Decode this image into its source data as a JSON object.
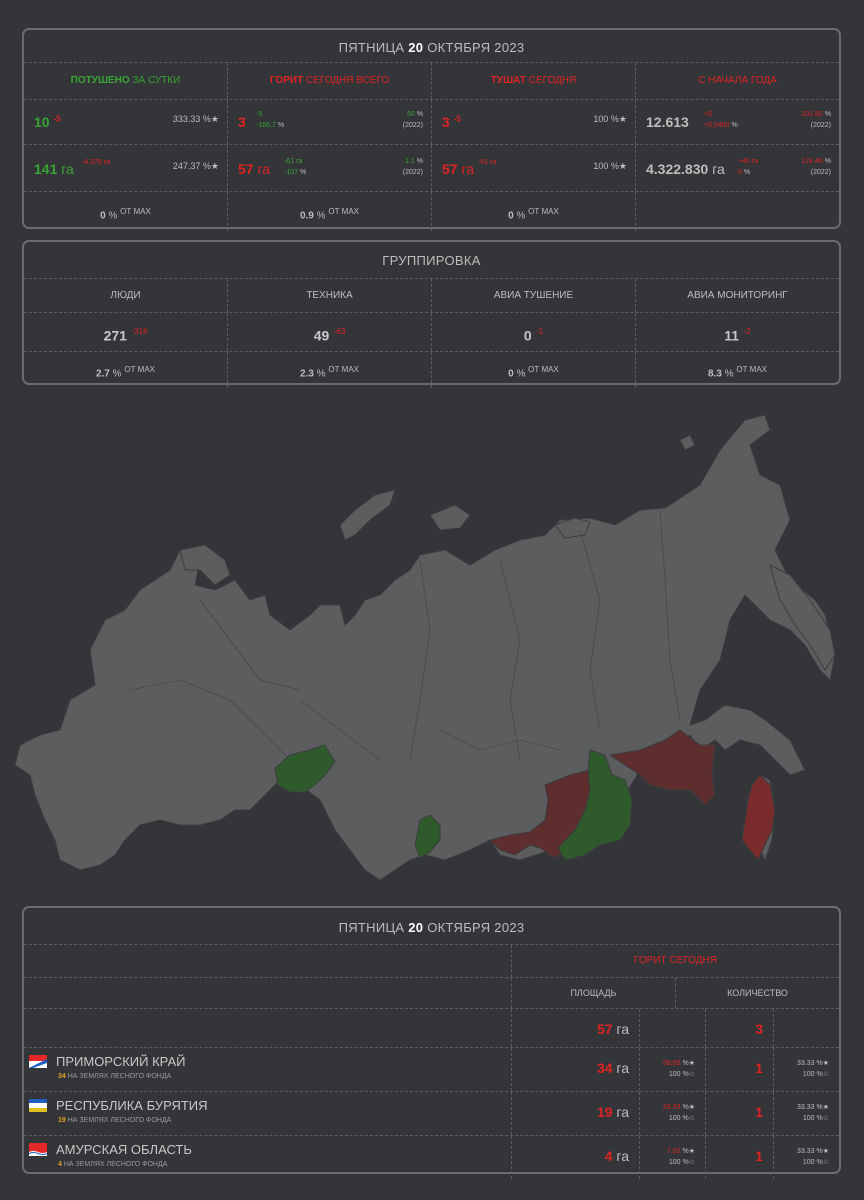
{
  "date": {
    "weekday": "ПЯТНИЦА",
    "day": "20",
    "month_year": "ОКТЯБРЯ 2023"
  },
  "summary": {
    "extinguished": {
      "hdr_a": "ПОТУШЕНО",
      "hdr_b": " ЗА СУТКИ",
      "count": "10",
      "count_delta": "-5",
      "count_pct": "333.33",
      "area": "141",
      "area_unit": "га",
      "area_delta": "-4.379 га",
      "area_pct": "247.37",
      "max_pct": "0"
    },
    "burning": {
      "hdr_a": "ГОРИТ",
      "hdr_b": " СЕГОДНЯ ВСЕГО",
      "count": "3",
      "count_delta": "-5",
      "count_delta_pct": "-166,7",
      "count_pct": "50",
      "count_year": "(2022)",
      "area": "57",
      "area_unit": "га",
      "area_delta": "-61 га",
      "area_delta_pct": "-107",
      "area_pct": "1.1",
      "area_year": "(2022)",
      "max_pct": "0.9"
    },
    "fighting": {
      "hdr_a": "ТУШАТ",
      "hdr_b": " СЕГОДНЯ",
      "count": "3",
      "count_delta": "-5",
      "count_pct": "100",
      "area": "57",
      "area_unit": "га",
      "area_delta": "-61 га",
      "area_pct": "100",
      "max_pct": "0"
    },
    "ytd": {
      "hdr": "С НАЧАЛА ГОДА",
      "count": "12.613",
      "count_delta": "+5",
      "count_delta_pct": "+0,0400",
      "count_pct": "101.82",
      "count_year": "(2022)",
      "area": "4.322.830",
      "area_unit": "га",
      "area_delta": "+40 га",
      "area_delta_pct": "0",
      "area_pct": "124.46",
      "area_year": "(2022)"
    },
    "pct_sign": "%",
    "star": "★",
    "of_max": "ОТ MAX"
  },
  "group": {
    "title": "ГРУППИРОВКА",
    "cols": [
      {
        "label": "ЛЮДИ",
        "value": "271",
        "delta": "-316",
        "max_pct": "2.7"
      },
      {
        "label": "ТЕХНИКА",
        "value": "49",
        "delta": "-63",
        "max_pct": "2.3"
      },
      {
        "label": "АВИА ТУШЕНИЕ",
        "value": "0",
        "delta": "-1",
        "max_pct": "0"
      },
      {
        "label": "АВИА МОНИТОРИНГ",
        "value": "11",
        "delta": "-2",
        "max_pct": "8.3"
      }
    ]
  },
  "table": {
    "burning_today": "ГОРИТ СЕГОДНЯ",
    "area_hdr": "ПЛОЩАДЬ",
    "count_hdr": "КОЛИЧЕСТВО",
    "total_area": "57",
    "total_count": "3",
    "unit": "га",
    "forest_note": "НА ЗЕМЛЯХ ЛЕСНОГО ФОНДА",
    "rows": [
      {
        "name": "ПРИМОРСКИЙ КРАЙ",
        "forest": "34",
        "area": "34",
        "area_pct": "59.65",
        "area_pct2": "100",
        "count": "1",
        "count_pct": "33.33",
        "count_pct2": "100"
      },
      {
        "name": "РЕСПУБЛИКА БУРЯТИЯ",
        "forest": "19",
        "area": "19",
        "area_pct": "33.33",
        "area_pct2": "100",
        "count": "1",
        "count_pct": "33.33",
        "count_pct2": "100"
      },
      {
        "name": "АМУРСКАЯ ОБЛАСТЬ",
        "forest": "4",
        "area": "4",
        "area_pct": "7.02",
        "area_pct2": "100",
        "count": "1",
        "count_pct": "33.33",
        "count_pct2": "100"
      }
    ]
  },
  "map_colors": {
    "land": "#5c5d5f",
    "border": "#3c3d3f",
    "extinguished": "#2f5a2c",
    "burning": "#5e2d2d",
    "burning_bright": "#7a2b2b"
  }
}
